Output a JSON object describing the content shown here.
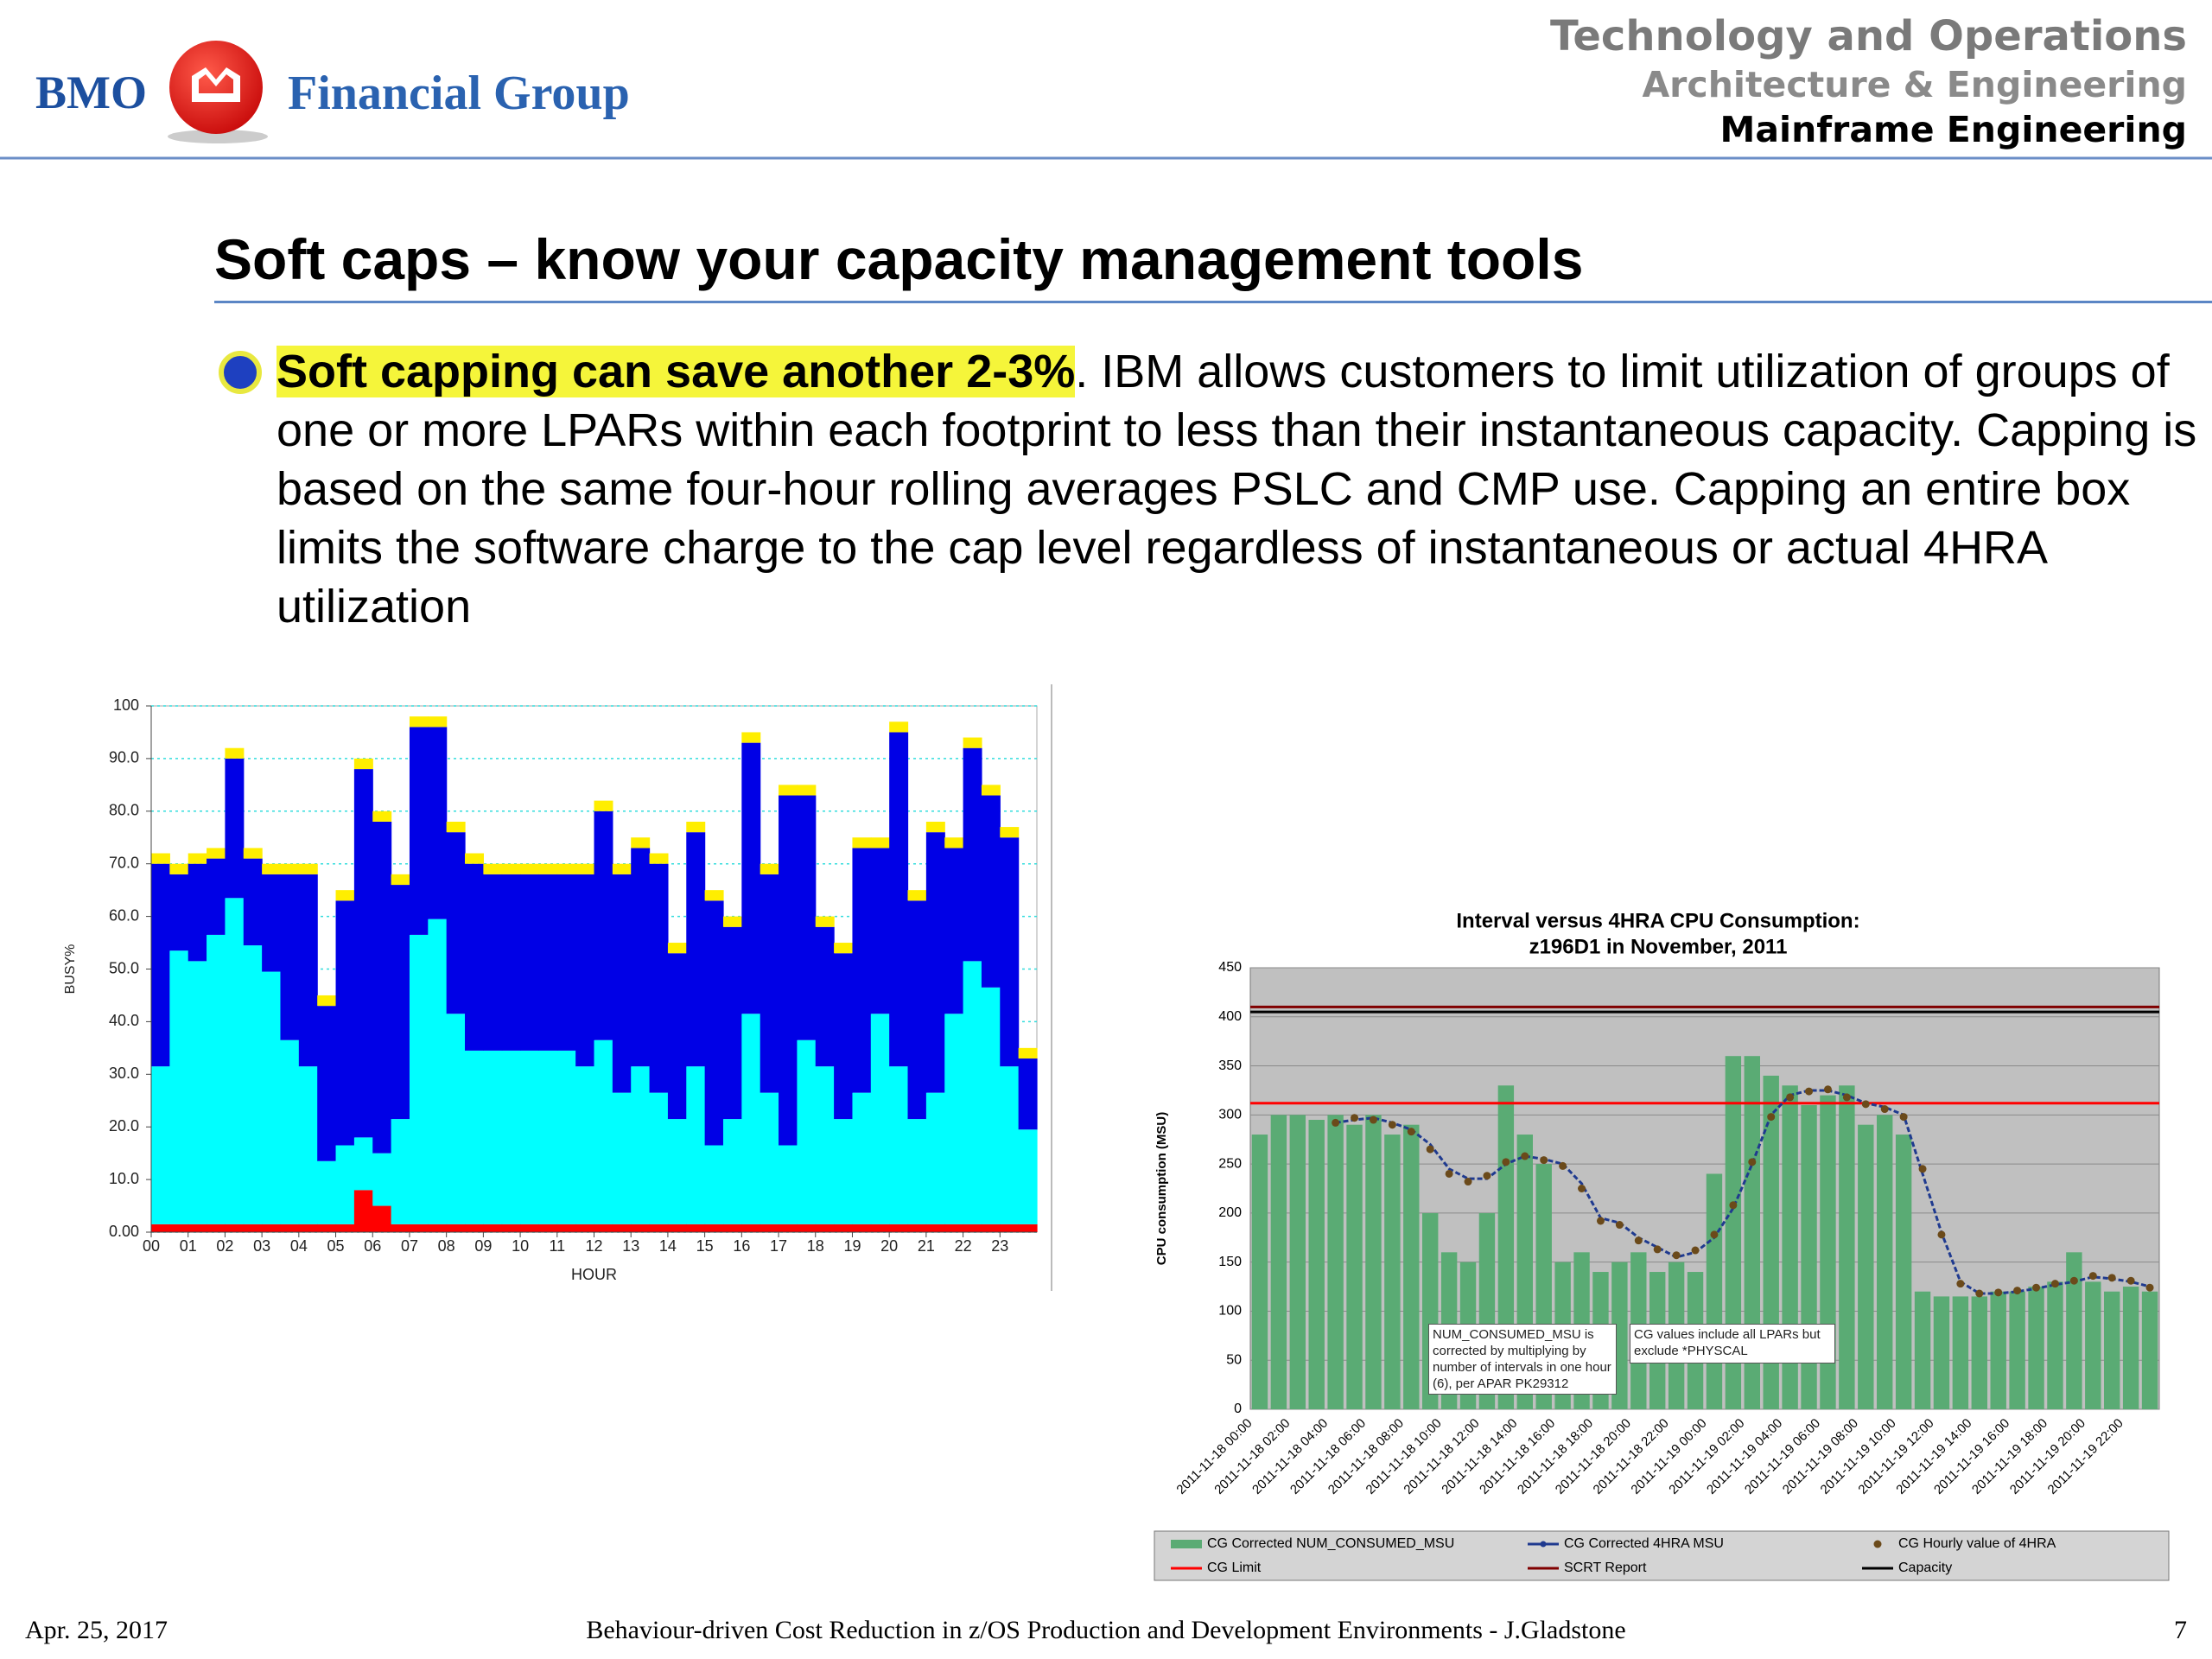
{
  "header": {
    "logo_left": "BMO",
    "logo_right": "Financial Group",
    "lines": [
      "Technology and Operations",
      "Architecture & Engineering",
      "Mainframe Engineering"
    ]
  },
  "slide": {
    "title": "Soft caps – know your capacity management tools",
    "bullet_highlight": "Soft capping can save another 2-3%",
    "bullet_text": ". IBM allows customers to limit utilization of groups of one or more LPARs within each footprint to less than their instantaneous capacity. Capping is based on the same four-hour rolling averages PSLC and CMP use. Capping an entire box limits the software charge to the cap level regardless of instantaneous or actual 4HRA utilization"
  },
  "footer": {
    "date": "Apr. 25, 2017",
    "center": "Behaviour-driven Cost Reduction in z/OS Production and Development Environments - J.Gladstone",
    "page": "7"
  },
  "chart_data": [
    {
      "type": "bar",
      "stacked": true,
      "xlabel": "HOUR",
      "ylabel": "BUSY%",
      "grid": true,
      "grid_color": "#33dddd",
      "x": [
        0,
        0.5,
        1,
        1.5,
        2,
        2.5,
        3,
        3.5,
        4,
        4.5,
        5,
        5.5,
        6,
        6.5,
        7,
        7.5,
        8,
        8.5,
        9,
        9.5,
        10,
        10.5,
        11,
        11.5,
        12,
        12.5,
        13,
        13.5,
        14,
        14.5,
        15,
        15.5,
        16,
        16.5,
        17,
        17.5,
        18,
        18.5,
        19,
        19.5,
        20,
        20.5,
        21,
        21.5,
        22,
        22.5,
        23,
        23.5
      ],
      "xlim": [
        0,
        24
      ],
      "xticks": [
        {
          "value": 0,
          "label": "00"
        },
        {
          "value": 1,
          "label": "01"
        },
        {
          "value": 2,
          "label": "02"
        },
        {
          "value": 3,
          "label": "03"
        },
        {
          "value": 4,
          "label": "04"
        },
        {
          "value": 5,
          "label": "05"
        },
        {
          "value": 6,
          "label": "06"
        },
        {
          "value": 7,
          "label": "07"
        },
        {
          "value": 8,
          "label": "08"
        },
        {
          "value": 9,
          "label": "09"
        },
        10,
        11,
        12,
        13,
        14,
        15,
        16,
        17,
        18,
        19,
        20,
        21,
        22,
        23
      ],
      "ylim": [
        0,
        100
      ],
      "yticks": [
        {
          "value": 0,
          "label": "0.00"
        },
        {
          "value": 10,
          "label": "10.0"
        },
        {
          "value": 20,
          "label": "20.0"
        },
        {
          "value": 30,
          "label": "30.0"
        },
        {
          "value": 40,
          "label": "40.0"
        },
        {
          "value": 50,
          "label": "50.0"
        },
        {
          "value": 60,
          "label": "60.0"
        },
        {
          "value": 70,
          "label": "70.0"
        },
        {
          "value": 80,
          "label": "80.0"
        },
        {
          "value": 90,
          "label": "90.0"
        },
        100
      ],
      "series": [
        {
          "color": "#ff0000",
          "values": [
            1.5,
            1.5,
            1.5,
            1.5,
            1.5,
            1.5,
            1.5,
            1.5,
            1.5,
            1.5,
            1.5,
            8,
            5,
            1.5,
            1.5,
            1.5,
            1.5,
            1.5,
            1.5,
            1.5,
            1.5,
            1.5,
            1.5,
            1.5,
            1.5,
            1.5,
            1.5,
            1.5,
            1.5,
            1.5,
            1.5,
            1.5,
            1.5,
            1.5,
            1.5,
            1.5,
            1.5,
            1.5,
            1.5,
            1.5,
            1.5,
            1.5,
            1.5,
            1.5,
            1.5,
            1.5,
            1.5,
            1.5
          ]
        },
        {
          "color": "#00ffff",
          "values": [
            30,
            52,
            50,
            55,
            62,
            53,
            48,
            35,
            30,
            12,
            15,
            10,
            10,
            20,
            55,
            58,
            40,
            33,
            33,
            33,
            33,
            33,
            33,
            30,
            35,
            25,
            30,
            25,
            20,
            30,
            15,
            20,
            40,
            25,
            15,
            35,
            30,
            20,
            25,
            40,
            30,
            20,
            25,
            40,
            50,
            45,
            30,
            18
          ]
        },
        {
          "color": "#0000e6",
          "values": [
            38.5,
            14.5,
            18.5,
            14.5,
            26.5,
            16.5,
            18.5,
            31.5,
            36.5,
            29.5,
            46.5,
            70,
            63,
            44.5,
            39.5,
            36.5,
            34.5,
            35.5,
            33.5,
            33.5,
            33.5,
            33.5,
            33.5,
            36.5,
            43.5,
            41.5,
            41.5,
            43.5,
            31.5,
            44.5,
            46.5,
            36.5,
            51.5,
            41.5,
            66.5,
            46.5,
            26.5,
            31.5,
            46.5,
            31.5,
            63.5,
            41.5,
            49.5,
            31.5,
            40.5,
            36.5,
            43.5,
            13.5
          ]
        },
        {
          "color": "#ffee00",
          "values": [
            2,
            2,
            2,
            2,
            2,
            2,
            2,
            2,
            2,
            2,
            2,
            2,
            2,
            2,
            2,
            2,
            2,
            2,
            2,
            2,
            2,
            2,
            2,
            2,
            2,
            2,
            2,
            2,
            2,
            2,
            2,
            2,
            2,
            2,
            2,
            2,
            2,
            2,
            2,
            2,
            2,
            2,
            2,
            2,
            2,
            2,
            2,
            2
          ]
        }
      ]
    },
    {
      "type": "combo",
      "title": "Interval versus 4HRA CPU Consumption:",
      "subtitle": "z196D1 in November, 2011",
      "ylabel": "CPU consumption (MSU)",
      "grid": true,
      "legend": "bottom",
      "categories": [
        "2011-11-18 00:00",
        null,
        "2011-11-18 02:00",
        null,
        "2011-11-18 04:00",
        null,
        "2011-11-18 06:00",
        null,
        "2011-11-18 08:00",
        null,
        "2011-11-18 10:00",
        null,
        "2011-11-18 12:00",
        null,
        "2011-11-18 14:00",
        null,
        "2011-11-18 16:00",
        null,
        "2011-11-18 18:00",
        null,
        "2011-11-18 20:00",
        null,
        "2011-11-18 22:00",
        null,
        "2011-11-19 00:00",
        null,
        "2011-11-19 02:00",
        null,
        "2011-11-19 04:00",
        null,
        "2011-11-19 06:00",
        null,
        "2011-11-19 08:00",
        null,
        "2011-11-19 10:00",
        null,
        "2011-11-19 12:00",
        null,
        "2011-11-19 14:00",
        null,
        "2011-11-19 16:00",
        null,
        "2011-11-19 18:00",
        null,
        "2011-11-19 20:00",
        null,
        "2011-11-19 22:00",
        null
      ],
      "ylim": [
        0,
        450
      ],
      "yticks": [
        0,
        50,
        100,
        150,
        200,
        250,
        300,
        350,
        400,
        450
      ],
      "series": [
        {
          "name": "CG Corrected NUM_CONSUMED_MSU",
          "type": "bar",
          "color": "#5aab74",
          "values": [
            280,
            300,
            300,
            295,
            300,
            290,
            300,
            280,
            290,
            200,
            160,
            150,
            200,
            330,
            280,
            250,
            150,
            160,
            140,
            150,
            160,
            140,
            150,
            140,
            240,
            360,
            360,
            340,
            330,
            310,
            320,
            330,
            290,
            300,
            280,
            120,
            115,
            115,
            115,
            120,
            120,
            125,
            130,
            160,
            130,
            120,
            125,
            120
          ]
        },
        {
          "name": "CG Corrected 4HRA MSU",
          "type": "line",
          "color": "#1f3a8f",
          "values": [
            null,
            null,
            null,
            null,
            292,
            295,
            297,
            292,
            285,
            270,
            245,
            235,
            235,
            250,
            258,
            255,
            250,
            230,
            195,
            190,
            175,
            165,
            155,
            160,
            175,
            205,
            250,
            300,
            320,
            325,
            325,
            320,
            312,
            308,
            300,
            240,
            180,
            130,
            118,
            118,
            120,
            123,
            127,
            130,
            135,
            133,
            130,
            125
          ]
        },
        {
          "name": "CG Hourly value of 4HRA",
          "type": "scatter",
          "color": "#6b4a1a",
          "values": [
            null,
            null,
            null,
            null,
            292,
            297,
            295,
            290,
            283,
            265,
            240,
            232,
            238,
            252,
            258,
            254,
            248,
            225,
            192,
            188,
            172,
            163,
            157,
            162,
            178,
            208,
            252,
            298,
            318,
            324,
            326,
            318,
            311,
            306,
            298,
            245,
            178,
            128,
            118,
            119,
            121,
            124,
            128,
            131,
            136,
            134,
            131,
            124
          ]
        },
        {
          "name": "CG Limit",
          "type": "hline",
          "color": "#ff0000",
          "value": 312
        },
        {
          "name": "SCRT Report",
          "type": "hline",
          "color": "#800000",
          "value": 410
        },
        {
          "name": "Capacity",
          "type": "hline",
          "color": "#000000",
          "value": 405
        }
      ],
      "annotations": [
        "NUM_CONSUMED_MSU is corrected by multiplying by number of intervals in one hour (6), per APAR PK29312",
        "CG values include all LPARs but exclude *PHYSCAL"
      ]
    }
  ]
}
